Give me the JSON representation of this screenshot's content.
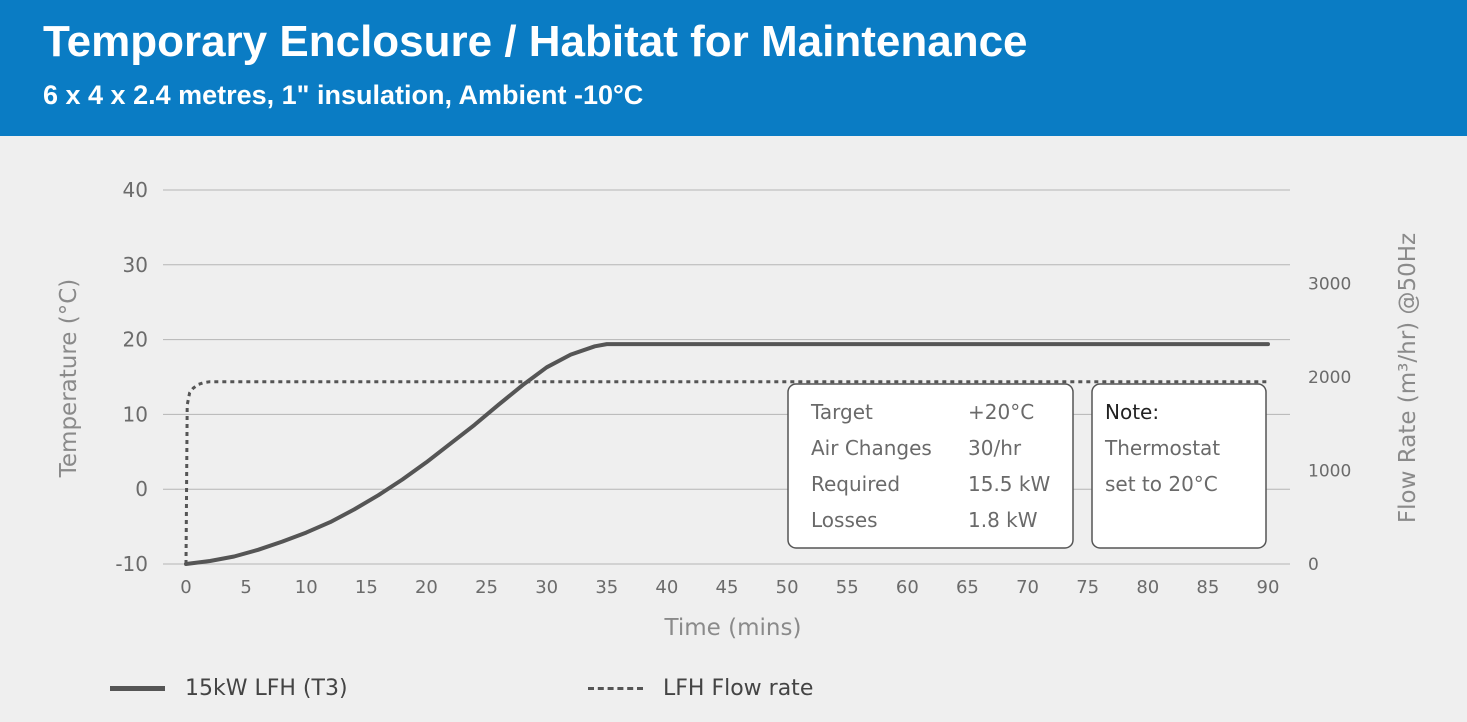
{
  "header": {
    "title": "Temporary Enclosure / Habitat for Maintenance",
    "subtitle": "6 x 4 x 2.4 metres, 1\" insulation, Ambient -10°C"
  },
  "colors": {
    "header_bg": "#0a7cc4",
    "series_line": "#555555",
    "grid": "#b5b5b5"
  },
  "chart_data": {
    "type": "line",
    "xlabel": "Time (mins)",
    "ylabel": "Temperature (°C)",
    "y2label": "Flow Rate (m³/hr) @50Hz",
    "xlim": [
      0,
      90
    ],
    "ylim": [
      -10,
      40
    ],
    "y2lim": [
      0,
      4000
    ],
    "x_ticks": [
      0,
      5,
      10,
      15,
      20,
      25,
      30,
      35,
      40,
      45,
      50,
      55,
      60,
      65,
      70,
      75,
      80,
      85,
      90
    ],
    "y_ticks": [
      -10,
      0,
      10,
      20,
      30,
      40
    ],
    "y2_ticks": [
      0,
      1000,
      2000,
      3000
    ],
    "grid": true,
    "series": [
      {
        "name": "15kW LFH (T3)",
        "axis": "left",
        "style": "solid",
        "x": [
          0,
          2,
          4,
          6,
          8,
          10,
          12,
          14,
          16,
          18,
          20,
          22,
          24,
          26,
          28,
          30,
          32,
          34,
          35,
          40,
          50,
          60,
          70,
          80,
          90
        ],
        "y": [
          -10,
          -9.6,
          -9,
          -8.1,
          -7,
          -5.8,
          -4.4,
          -2.7,
          -0.8,
          1.3,
          3.6,
          6.1,
          8.6,
          11.3,
          13.9,
          16.3,
          18.0,
          19.1,
          19.4,
          19.4,
          19.4,
          19.4,
          19.4,
          19.4,
          19.4
        ]
      },
      {
        "name": "LFH Flow rate",
        "axis": "right",
        "style": "dotted",
        "x": [
          0,
          0.1,
          0.3,
          0.6,
          1.0,
          1.5,
          2.0,
          5,
          20,
          40,
          60,
          80,
          90
        ],
        "y": [
          0,
          1700,
          1830,
          1880,
          1920,
          1940,
          1950,
          1950,
          1950,
          1950,
          1950,
          1950,
          1950
        ]
      }
    ],
    "info_box": {
      "rows": [
        {
          "label": "Target",
          "value": "+20°C"
        },
        {
          "label": "Air Changes",
          "value": "30/hr"
        },
        {
          "label": "Required",
          "value": "15.5 kW"
        },
        {
          "label": "Losses",
          "value": "1.8 kW"
        }
      ]
    },
    "note_box": {
      "title": "Note:",
      "lines": [
        "Thermostat",
        "set to 20°C"
      ]
    }
  },
  "legend": {
    "items": [
      {
        "label": "15kW LFH (T3)",
        "style": "solid"
      },
      {
        "label": "LFH Flow rate",
        "style": "dotted"
      }
    ]
  }
}
